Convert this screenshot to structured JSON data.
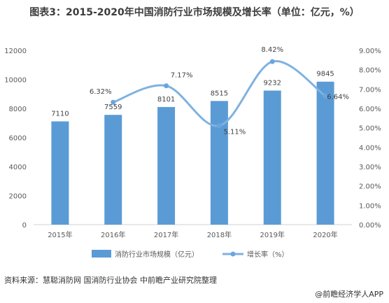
{
  "title": "图表3：2015-2020年中国消防行业市场规模及增长率（单位：亿元，%）",
  "source": "资料来源：慧聪消防网 国消防行业协会 中前瞻产业研究院整理",
  "brand": "@前瞻经济学人APP",
  "colors": {
    "bar": "#5b9bd5",
    "line": "#7fb2e0",
    "line_marker": "#6aa6dd"
  },
  "chart_data": {
    "type": "bar",
    "categories": [
      "2015年",
      "2016年",
      "2017年",
      "2018年",
      "2019年",
      "2020年"
    ],
    "series": [
      {
        "name": "消防行业市场规模（亿元）",
        "type": "bar",
        "axis": "left",
        "values": [
          7110,
          7559,
          8101,
          8515,
          9232,
          9845
        ],
        "labels": [
          "7110",
          "7559",
          "8101",
          "8515",
          "9232",
          "9845"
        ]
      },
      {
        "name": "增长率（%）",
        "type": "line",
        "axis": "right",
        "values": [
          null,
          6.32,
          7.17,
          5.11,
          8.42,
          6.64
        ],
        "labels": [
          "",
          "6.32%",
          "7.17%",
          "5.11%",
          "8.42%",
          "6.64%"
        ]
      }
    ],
    "y_left": {
      "min": 0,
      "max": 12000,
      "ticks": [
        "0",
        "2000",
        "4000",
        "6000",
        "8000",
        "10000",
        "12000"
      ]
    },
    "y_right": {
      "min": 0,
      "max": 9,
      "ticks": [
        "0.00%",
        "1.00%",
        "2.00%",
        "3.00%",
        "4.00%",
        "5.00%",
        "6.00%",
        "7.00%",
        "8.00%",
        "9.00%"
      ]
    },
    "legend_position": "bottom",
    "grid": false
  }
}
